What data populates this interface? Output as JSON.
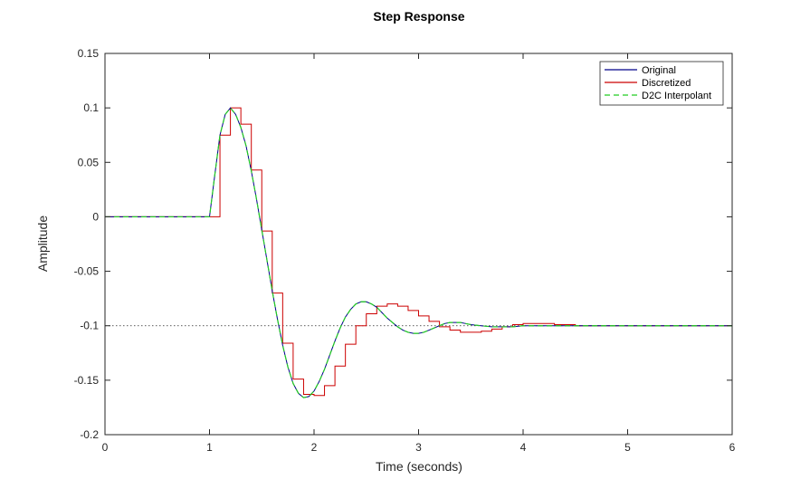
{
  "chart_data": {
    "type": "line",
    "title": "Step Response",
    "xlabel": "Time (seconds)",
    "ylabel": "Amplitude",
    "xlim": [
      0,
      6
    ],
    "ylim": [
      -0.2,
      0.15
    ],
    "xticks": [
      0,
      1,
      2,
      3,
      4,
      5,
      6
    ],
    "xtick_labels": [
      "0",
      "1",
      "2",
      "3",
      "4",
      "5",
      "6"
    ],
    "yticks": [
      -0.2,
      -0.15,
      -0.1,
      -0.05,
      0,
      0.05,
      0.1,
      0.15
    ],
    "ytick_labels": [
      "-0.2",
      "-0.15",
      "-0.1",
      "-0.05",
      "0",
      "0.05",
      "0.1",
      "0.15"
    ],
    "grid": false,
    "legend_position": "top-right",
    "reference_line": {
      "y": -0.1,
      "style": "dotted"
    },
    "series": [
      {
        "name": "Original",
        "style": "solid",
        "color": "#00008b",
        "x": [
          0,
          1.0,
          1.05,
          1.1,
          1.15,
          1.2,
          1.25,
          1.3,
          1.35,
          1.4,
          1.45,
          1.5,
          1.55,
          1.6,
          1.65,
          1.7,
          1.75,
          1.8,
          1.85,
          1.9,
          1.95,
          2.0,
          2.05,
          2.1,
          2.15,
          2.2,
          2.25,
          2.3,
          2.35,
          2.4,
          2.45,
          2.5,
          2.55,
          2.6,
          2.65,
          2.7,
          2.75,
          2.8,
          2.85,
          2.9,
          2.95,
          3.0,
          3.05,
          3.1,
          3.15,
          3.2,
          3.25,
          3.3,
          3.35,
          3.4,
          3.45,
          3.5,
          3.6,
          3.7,
          3.8,
          3.9,
          4.0,
          4.1,
          4.2,
          4.3,
          4.4,
          4.5,
          4.6,
          4.7,
          4.8,
          4.9,
          5.0,
          5.1,
          5.2,
          5.3,
          5.4,
          5.5,
          5.6,
          5.7,
          5.8,
          5.9,
          6.0
        ],
        "y": [
          0,
          0,
          0.038,
          0.075,
          0.094,
          0.1,
          0.094,
          0.082,
          0.065,
          0.042,
          0.016,
          -0.012,
          -0.04,
          -0.068,
          -0.094,
          -0.118,
          -0.138,
          -0.153,
          -0.162,
          -0.166,
          -0.165,
          -0.16,
          -0.151,
          -0.14,
          -0.127,
          -0.114,
          -0.102,
          -0.092,
          -0.085,
          -0.08,
          -0.078,
          -0.078,
          -0.08,
          -0.083,
          -0.088,
          -0.093,
          -0.097,
          -0.101,
          -0.104,
          -0.106,
          -0.107,
          -0.107,
          -0.106,
          -0.104,
          -0.102,
          -0.1,
          -0.098,
          -0.097,
          -0.097,
          -0.097,
          -0.098,
          -0.099,
          -0.1,
          -0.101,
          -0.101,
          -0.101,
          -0.1,
          -0.1,
          -0.1,
          -0.1,
          -0.1,
          -0.1,
          -0.1,
          -0.1,
          -0.1,
          -0.1,
          -0.1,
          -0.1,
          -0.1,
          -0.1,
          -0.1,
          -0.1,
          -0.1,
          -0.1,
          -0.1,
          -0.1,
          -0.1
        ]
      },
      {
        "name": "Discretized",
        "style": "stairs",
        "color": "#cc0000",
        "x": [
          0,
          0.1,
          0.2,
          0.3,
          0.4,
          0.5,
          0.6,
          0.7,
          0.8,
          0.9,
          1.0,
          1.1,
          1.2,
          1.3,
          1.4,
          1.5,
          1.6,
          1.7,
          1.8,
          1.9,
          2.0,
          2.1,
          2.2,
          2.3,
          2.4,
          2.5,
          2.6,
          2.7,
          2.8,
          2.9,
          3.0,
          3.1,
          3.2,
          3.3,
          3.4,
          3.5,
          3.6,
          3.7,
          3.8,
          3.9,
          4.0,
          4.1,
          4.2,
          4.3,
          4.4,
          4.5,
          4.6,
          4.7,
          4.8,
          4.9,
          5.0,
          5.1,
          5.2,
          5.3,
          5.4,
          5.5,
          5.6,
          5.7,
          5.8,
          5.9,
          6.0
        ],
        "y": [
          0,
          0,
          0,
          0,
          0,
          0,
          0,
          0,
          0,
          0,
          0,
          0.075,
          0.1,
          0.085,
          0.043,
          -0.013,
          -0.07,
          -0.116,
          -0.149,
          -0.163,
          -0.164,
          -0.155,
          -0.137,
          -0.117,
          -0.1,
          -0.089,
          -0.082,
          -0.08,
          -0.082,
          -0.086,
          -0.091,
          -0.096,
          -0.101,
          -0.104,
          -0.106,
          -0.106,
          -0.105,
          -0.103,
          -0.101,
          -0.099,
          -0.098,
          -0.098,
          -0.098,
          -0.099,
          -0.099,
          -0.1,
          -0.1,
          -0.1,
          -0.1,
          -0.1,
          -0.1,
          -0.1,
          -0.1,
          -0.1,
          -0.1,
          -0.1,
          -0.1,
          -0.1,
          -0.1,
          -0.1,
          -0.1
        ]
      },
      {
        "name": "D2C Interpolant",
        "style": "dashed",
        "color": "#22cc22",
        "x": [
          0,
          1.0,
          1.05,
          1.1,
          1.15,
          1.2,
          1.25,
          1.3,
          1.35,
          1.4,
          1.45,
          1.5,
          1.55,
          1.6,
          1.65,
          1.7,
          1.75,
          1.8,
          1.85,
          1.9,
          1.95,
          2.0,
          2.05,
          2.1,
          2.15,
          2.2,
          2.25,
          2.3,
          2.35,
          2.4,
          2.45,
          2.5,
          2.55,
          2.6,
          2.65,
          2.7,
          2.75,
          2.8,
          2.85,
          2.9,
          2.95,
          3.0,
          3.05,
          3.1,
          3.15,
          3.2,
          3.25,
          3.3,
          3.35,
          3.4,
          3.45,
          3.5,
          3.6,
          3.7,
          3.8,
          3.9,
          4.0,
          4.1,
          4.2,
          4.3,
          4.4,
          4.5,
          4.6,
          4.7,
          4.8,
          4.9,
          5.0,
          5.1,
          5.2,
          5.3,
          5.4,
          5.5,
          5.6,
          5.7,
          5.8,
          5.9,
          6.0
        ],
        "y": [
          0,
          0,
          0.038,
          0.075,
          0.094,
          0.1,
          0.094,
          0.082,
          0.065,
          0.042,
          0.016,
          -0.012,
          -0.04,
          -0.068,
          -0.094,
          -0.118,
          -0.138,
          -0.153,
          -0.162,
          -0.166,
          -0.165,
          -0.16,
          -0.151,
          -0.14,
          -0.127,
          -0.114,
          -0.102,
          -0.092,
          -0.085,
          -0.08,
          -0.078,
          -0.078,
          -0.08,
          -0.083,
          -0.088,
          -0.093,
          -0.097,
          -0.101,
          -0.104,
          -0.106,
          -0.107,
          -0.107,
          -0.106,
          -0.104,
          -0.102,
          -0.1,
          -0.098,
          -0.097,
          -0.097,
          -0.097,
          -0.098,
          -0.099,
          -0.1,
          -0.101,
          -0.101,
          -0.101,
          -0.1,
          -0.1,
          -0.1,
          -0.1,
          -0.1,
          -0.1,
          -0.1,
          -0.1,
          -0.1,
          -0.1,
          -0.1,
          -0.1,
          -0.1,
          -0.1,
          -0.1,
          -0.1,
          -0.1,
          -0.1,
          -0.1,
          -0.1,
          -0.1
        ]
      }
    ]
  }
}
